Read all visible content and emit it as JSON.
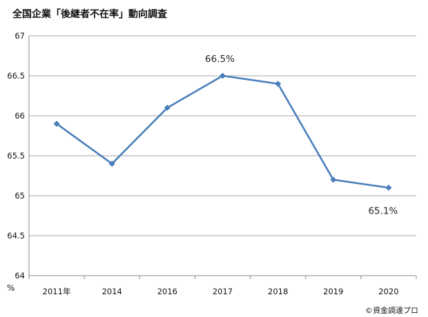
{
  "chart_data": {
    "type": "line",
    "title": "全国企業「後継者不在率」動向調査",
    "categories": [
      "2011年",
      "2014",
      "2016",
      "2017",
      "2018",
      "2019",
      "2020"
    ],
    "series": [
      {
        "values": [
          65.9,
          65.4,
          66.1,
          66.5,
          66.4,
          65.2,
          65.1
        ]
      }
    ],
    "ylim": [
      64,
      67
    ],
    "yticks": [
      "64",
      "64.5",
      "65",
      "65.5",
      "66",
      "66.5",
      "67"
    ],
    "ylabel": "%",
    "annotations": [
      {
        "category": "2017",
        "text": "66.5%"
      },
      {
        "category": "2020",
        "text": "65.1%"
      }
    ],
    "grid": "horizontal",
    "line_color": "#4a7ebb"
  },
  "credit": "©資金調達プロ"
}
